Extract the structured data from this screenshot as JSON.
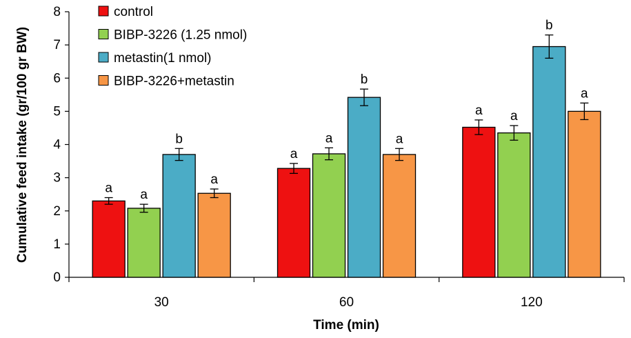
{
  "colors": {
    "control": "#ee1111",
    "bibp": "#92d050",
    "metastin": "#4bacc6",
    "combo": "#f79646"
  },
  "chart_data": {
    "type": "bar",
    "title": "",
    "xlabel": "Time (min)",
    "ylabel": "Cumulative feed intake (gr/100 gr BW)",
    "ylim": [
      0,
      8
    ],
    "yticks": [
      "0",
      "1",
      "2",
      "3",
      "4",
      "5",
      "6",
      "7",
      "8"
    ],
    "categories": [
      "30",
      "60",
      "120"
    ],
    "grid": false,
    "legend_position": "top-left",
    "series": [
      {
        "name": "control",
        "color": "#ee1111",
        "values": [
          2.3,
          3.28,
          4.52
        ],
        "errors": [
          0.1,
          0.15,
          0.22
        ],
        "labels": [
          "a",
          "a",
          "a"
        ]
      },
      {
        "name": "BIBP-3226 (1.25 nmol)",
        "color": "#92d050",
        "values": [
          2.08,
          3.72,
          4.35
        ],
        "errors": [
          0.12,
          0.18,
          0.22
        ],
        "labels": [
          "a",
          "a",
          "a"
        ]
      },
      {
        "name": "metastin(1 nmol)",
        "color": "#4bacc6",
        "values": [
          3.7,
          5.42,
          6.95
        ],
        "errors": [
          0.18,
          0.25,
          0.35
        ],
        "labels": [
          "b",
          "b",
          "b"
        ]
      },
      {
        "name": "BIBP-3226+metastin",
        "color": "#f79646",
        "values": [
          2.53,
          3.7,
          5.0
        ],
        "errors": [
          0.13,
          0.18,
          0.25
        ],
        "labels": [
          "a",
          "a",
          "a"
        ]
      }
    ]
  }
}
